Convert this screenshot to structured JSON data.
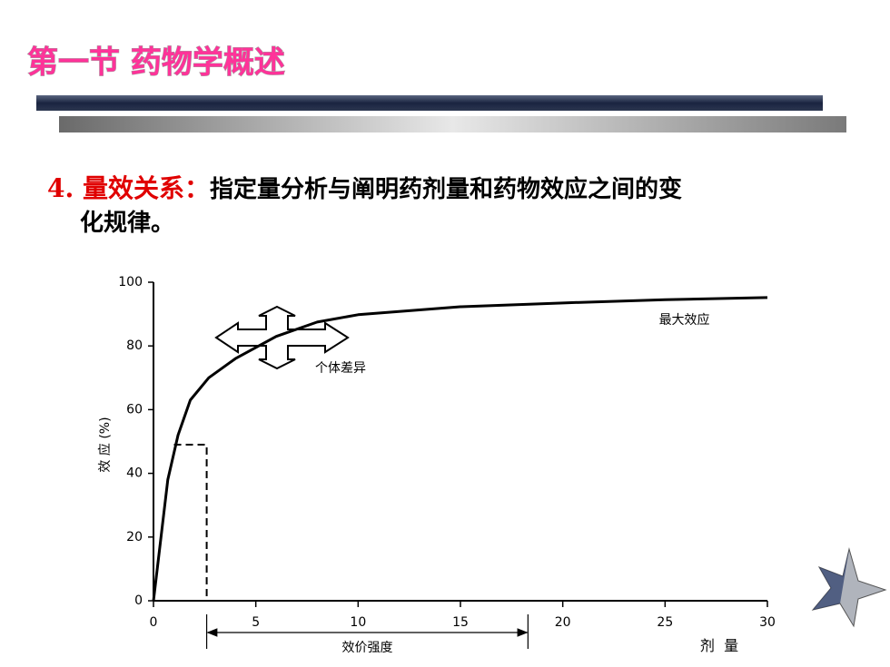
{
  "slide": {
    "title": "第一节  药物学概述",
    "point": {
      "heading": "4. 量效关系：",
      "text_lines": [
        "指定量分析与阐明药剂量和药物效应之间的变",
        "化规律。"
      ]
    }
  },
  "chart_data": {
    "type": "line",
    "x_label": "剂  量",
    "y_label": "效 应 (%)",
    "x": [
      0,
      0.7,
      1.2,
      1.8,
      2.7,
      4,
      6,
      8,
      10,
      15,
      20,
      25,
      30
    ],
    "series": [
      {
        "color": "#000000",
        "values": [
          0,
          38,
          52,
          63,
          70,
          76,
          83,
          87.5,
          89.8,
          92.3,
          93.5,
          94.5,
          95.2
        ]
      }
    ],
    "guide": {
      "x": [
        1,
        2.6,
        2.6
      ],
      "y": [
        49,
        49,
        0
      ]
    },
    "potency_arrow": {
      "from": 2.6,
      "to": 18.3,
      "label": "效价强度"
    },
    "annotations": [
      {
        "text": "最大效应",
        "x": 24.7,
        "y": 88
      },
      {
        "text": "个体差异",
        "x": 7.9,
        "y": 73
      }
    ],
    "xlim": [
      0,
      30
    ],
    "xticks": [
      0,
      5,
      10,
      15,
      20,
      25,
      30
    ],
    "ylim": [
      0,
      100
    ],
    "yticks": [
      0,
      20,
      40,
      60,
      80,
      100
    ]
  }
}
